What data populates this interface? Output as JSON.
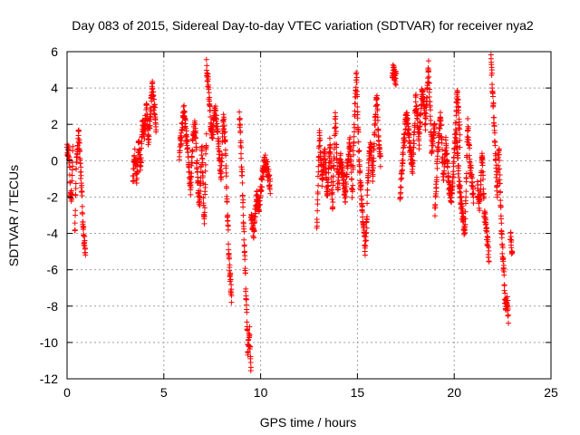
{
  "chart_data": {
    "type": "scatter",
    "title": "Day 083 of 2015, Sidereal Day-to-day VTEC variation (SDTVAR) for receiver nya2",
    "xlabel": "GPS time / hours",
    "ylabel": "SDTVAR / TECUs",
    "xlim": [
      0,
      25
    ],
    "ylim": [
      -12,
      6
    ],
    "xticks": [
      0,
      5,
      10,
      15,
      20,
      25
    ],
    "yticks": [
      -12,
      -10,
      -8,
      -6,
      -4,
      -2,
      0,
      2,
      4,
      6
    ],
    "grid": true,
    "marker": "+",
    "color": "#ff0000",
    "segments": [
      {
        "x0": 0.0,
        "x1": 0.3,
        "y": [
          0.6,
          0.4,
          0.2,
          -2.0,
          -1.8,
          0.5
        ]
      },
      {
        "x0": 0.4,
        "x1": 0.95,
        "y": [
          -4.2,
          -0.5,
          0.8,
          1.5,
          0.0,
          -1.5,
          -3.2,
          -4.5,
          -4.8
        ]
      },
      {
        "x0": 3.4,
        "x1": 4.6,
        "y": [
          -1.2,
          0.5,
          -1.0,
          1.0,
          -0.5,
          2.0,
          1.5,
          3.0,
          1.0,
          2.5,
          4.0,
          3.0,
          1.8
        ]
      },
      {
        "x0": 5.8,
        "x1": 7.2,
        "y": [
          0.5,
          1.5,
          2.8,
          1.5,
          0.0,
          -1.5,
          1.2,
          2.0,
          -0.8,
          -2.5,
          1.0,
          -3.5,
          1.5
        ]
      },
      {
        "x0": 7.2,
        "x1": 8.5,
        "y": [
          5.2,
          4.0,
          2.0,
          1.5,
          3.0,
          2.0,
          0.5,
          -1.0,
          2.5,
          1.0,
          -3.0,
          -6.0,
          -7.5
        ]
      },
      {
        "x0": 8.9,
        "x1": 9.5,
        "y": [
          2.8,
          1.0,
          -1.0,
          -3.5,
          -6.0,
          -8.5,
          -10.5,
          -9.5,
          -11.8
        ]
      },
      {
        "x0": 9.5,
        "x1": 10.5,
        "y": [
          -3.0,
          -4.0,
          -2.0,
          -2.5,
          -1.0,
          0.0,
          -0.5,
          -1.5
        ]
      },
      {
        "x0": 12.9,
        "x1": 14.4,
        "y": [
          -3.8,
          1.5,
          -1.0,
          0.5,
          -2.0,
          1.0,
          -2.5,
          2.5,
          -1.5,
          0.0,
          -1.0,
          -2.2
        ]
      },
      {
        "x0": 14.4,
        "x1": 15.5,
        "y": [
          -1.5,
          0.0,
          1.0,
          -2.0,
          2.0,
          4.8,
          1.0,
          -1.5,
          -3.0,
          -5.0,
          -3.0
        ]
      },
      {
        "x0": 15.5,
        "x1": 16.2,
        "y": [
          -2.0,
          0.0,
          1.0,
          -1.0,
          2.0,
          3.5,
          1.2,
          0.0
        ]
      },
      {
        "x0": 16.8,
        "x1": 17.0,
        "y": [
          5.0,
          4.5
        ]
      },
      {
        "x0": 17.2,
        "x1": 19.0,
        "y": [
          -2.0,
          0.5,
          2.5,
          1.0,
          -0.5,
          3.5,
          1.0,
          4.0,
          2.0,
          5.2,
          0.5,
          2.0
        ]
      },
      {
        "x0": 19.0,
        "x1": 20.3,
        "y": [
          -3.0,
          0.5,
          2.5,
          -1.0,
          1.0,
          -1.5,
          -2.0,
          0.5,
          3.8,
          1.0
        ]
      },
      {
        "x0": 20.1,
        "x1": 21.0,
        "y": [
          1.5,
          -1.0,
          -2.8,
          -4.0,
          2.0,
          -0.5,
          -2.0
        ]
      },
      {
        "x0": 21.2,
        "x1": 21.8,
        "y": [
          -1.5,
          -2.5,
          0.5,
          -3.0,
          -4.0,
          -5.4
        ]
      },
      {
        "x0": 21.9,
        "x1": 22.8,
        "y": [
          5.5,
          4.0,
          2.0,
          0.0,
          -2.0,
          1.0,
          -2.5,
          -4.5,
          -6.0,
          -8.0,
          -7.5,
          -8.5
        ]
      },
      {
        "x0": 22.9,
        "x1": 23.0,
        "y": [
          -4.0,
          -5.0
        ]
      }
    ]
  }
}
